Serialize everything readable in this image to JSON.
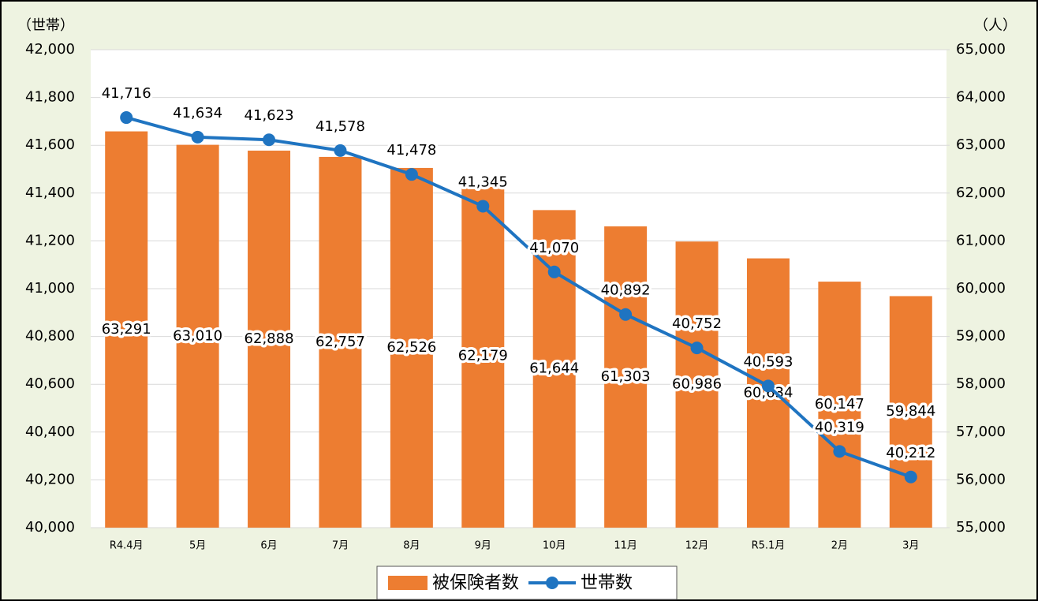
{
  "chart_data": {
    "type": "combo",
    "y_label": "（世帯）",
    "y2_label": "（人）",
    "categories": [
      "R4.4月",
      "5月",
      "6月",
      "7月",
      "8月",
      "9月",
      "10月",
      "11月",
      "12月",
      "R5.1月",
      "2月",
      "3月"
    ],
    "series": [
      {
        "name": "被保険者数",
        "type": "bar",
        "axis": "y2",
        "color": "#ed7d31",
        "values": [
          63291,
          63010,
          62888,
          62757,
          62526,
          62179,
          61644,
          61303,
          60986,
          60634,
          60147,
          59844
        ],
        "value_labels": [
          "63,291",
          "63,010",
          "62,888",
          "62,757",
          "62,526",
          "62,179",
          "61,644",
          "61,303",
          "60,986",
          "60,634",
          "60,147",
          "59,844"
        ]
      },
      {
        "name": "世帯数",
        "type": "line",
        "color": "#1f74c1",
        "values": [
          41716,
          41634,
          41623,
          41578,
          41478,
          41345,
          41070,
          40892,
          40752,
          40593,
          40319,
          40212
        ],
        "value_labels": [
          "41,716",
          "41,634",
          "41,623",
          "41,578",
          "41,478",
          "41,345",
          "41,070",
          "40,892",
          "40,752",
          "40,593",
          "40,319",
          "40,212"
        ]
      }
    ],
    "ylim": [
      40000,
      42000
    ],
    "yticks": [
      {
        "value": 40000,
        "label": "40,000"
      },
      {
        "value": 40200,
        "label": "40,200"
      },
      {
        "value": 40400,
        "label": "40,400"
      },
      {
        "value": 40600,
        "label": "40,600"
      },
      {
        "value": 40800,
        "label": "40,800"
      },
      {
        "value": 41000,
        "label": "41,000"
      },
      {
        "value": 41200,
        "label": "41,200"
      },
      {
        "value": 41400,
        "label": "41,400"
      },
      {
        "value": 41600,
        "label": "41,600"
      },
      {
        "value": 41800,
        "label": "41,800"
      },
      {
        "value": 42000,
        "label": "42,000"
      }
    ],
    "y2lim": [
      55000,
      65000
    ],
    "y2ticks": [
      {
        "value": 55000,
        "label": "55,000"
      },
      {
        "value": 56000,
        "label": "56,000"
      },
      {
        "value": 57000,
        "label": "57,000"
      },
      {
        "value": 58000,
        "label": "58,000"
      },
      {
        "value": 59000,
        "label": "59,000"
      },
      {
        "value": 60000,
        "label": "60,000"
      },
      {
        "value": 61000,
        "label": "61,000"
      },
      {
        "value": 62000,
        "label": "62,000"
      },
      {
        "value": 63000,
        "label": "63,000"
      },
      {
        "value": 64000,
        "label": "64,000"
      },
      {
        "value": 65000,
        "label": "65,000"
      }
    ],
    "grid": true,
    "legend": "bottom"
  }
}
